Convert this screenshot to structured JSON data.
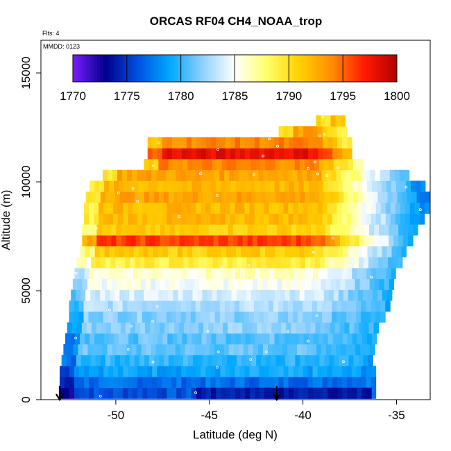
{
  "chart_data": {
    "type": "heatmap",
    "title": "ORCAS RF04 CH4_NOAA_trop",
    "header_notes": [
      "Flts: 4",
      "MMDD: 0123"
    ],
    "xlabel": "Latitude (deg N)",
    "ylabel": "Altitude (m)",
    "xlim": [
      -54,
      -33.2
    ],
    "ylim": [
      0,
      16500
    ],
    "x_ticks": [
      -50,
      -45,
      -40,
      -35
    ],
    "y_ticks": [
      0,
      5000,
      10000,
      15000
    ],
    "colorbar": {
      "min": 1770,
      "max": 1800,
      "ticks": [
        1770,
        1775,
        1780,
        1785,
        1790,
        1795,
        1800
      ],
      "colors": [
        "#7a1dff",
        "#00008b",
        "#0050e0",
        "#00a8ff",
        "#8fd0ff",
        "#ffffff",
        "#ffff66",
        "#ffd000",
        "#ff8c00",
        "#ff1a00",
        "#b30000"
      ]
    },
    "markers": [
      {
        "lat": -53.0,
        "label": "arrow"
      },
      {
        "lat": -41.4,
        "label": "arrow"
      }
    ],
    "layers": [
      {
        "alt": 300,
        "x0": -53.0,
        "x1": -36.3,
        "value": 1776
      },
      {
        "alt": 800,
        "x0": -53.0,
        "x1": -36.3,
        "value": 1777
      },
      {
        "alt": 1300,
        "x0": -53.0,
        "x1": -36.3,
        "value": 1779
      },
      {
        "alt": 1800,
        "x0": -52.9,
        "x1": -36.3,
        "value": 1780
      },
      {
        "alt": 2300,
        "x0": -52.8,
        "x1": -36.2,
        "value": 1781
      },
      {
        "alt": 2800,
        "x0": -52.7,
        "x1": -36.1,
        "value": 1781
      },
      {
        "alt": 3300,
        "x0": -52.6,
        "x1": -36.0,
        "value": 1782
      },
      {
        "alt": 3800,
        "x0": -52.5,
        "x1": -35.8,
        "value": 1782
      },
      {
        "alt": 4300,
        "x0": -52.5,
        "x1": -35.6,
        "value": 1783
      },
      {
        "alt": 4800,
        "x0": -52.4,
        "x1": -35.4,
        "value": 1784
      },
      {
        "alt": 5300,
        "x0": -52.3,
        "x1": -35.2,
        "value": 1785
      },
      {
        "alt": 5800,
        "x0": -52.2,
        "x1": -35.1,
        "value": 1786
      },
      {
        "alt": 6300,
        "x0": -52.1,
        "x1": -34.9,
        "value": 1789
      },
      {
        "alt": 6800,
        "x0": -51.9,
        "x1": -34.6,
        "value": 1791
      },
      {
        "alt": 7300,
        "x0": -51.8,
        "x1": -34.3,
        "value": 1796
      },
      {
        "alt": 7800,
        "x0": -51.8,
        "x1": -34.0,
        "value": 1791
      },
      {
        "alt": 8300,
        "x0": -51.7,
        "x1": -33.7,
        "value": 1792
      },
      {
        "alt": 8800,
        "x0": -51.7,
        "x1": -33.5,
        "value": 1792
      },
      {
        "alt": 9300,
        "x0": -51.6,
        "x1": -33.4,
        "value": 1793
      },
      {
        "alt": 9800,
        "x0": -51.4,
        "x1": -33.5,
        "value": 1792
      },
      {
        "alt": 10300,
        "x0": -50.7,
        "x1": -34.5,
        "value": 1793
      },
      {
        "alt": 10800,
        "x0": -48.5,
        "x1": -37.0,
        "value": 1794
      },
      {
        "alt": 11300,
        "x0": -48.3,
        "x1": -37.5,
        "value": 1798
      },
      {
        "alt": 11800,
        "x0": -48.3,
        "x1": -37.6,
        "value": 1794
      },
      {
        "alt": 12300,
        "x0": -41.3,
        "x1": -37.8,
        "value": 1793
      },
      {
        "alt": 12800,
        "x0": -39.3,
        "x1": -38.0,
        "value": 1795
      }
    ],
    "ocean_cells": [
      {
        "alt": 300,
        "x0": -45.7,
        "x1": -36.5,
        "value": 1774
      }
    ],
    "east_gradient": {
      "lat_start": -39.5,
      "lat_end": -33.3,
      "value_end": 1778
    }
  }
}
